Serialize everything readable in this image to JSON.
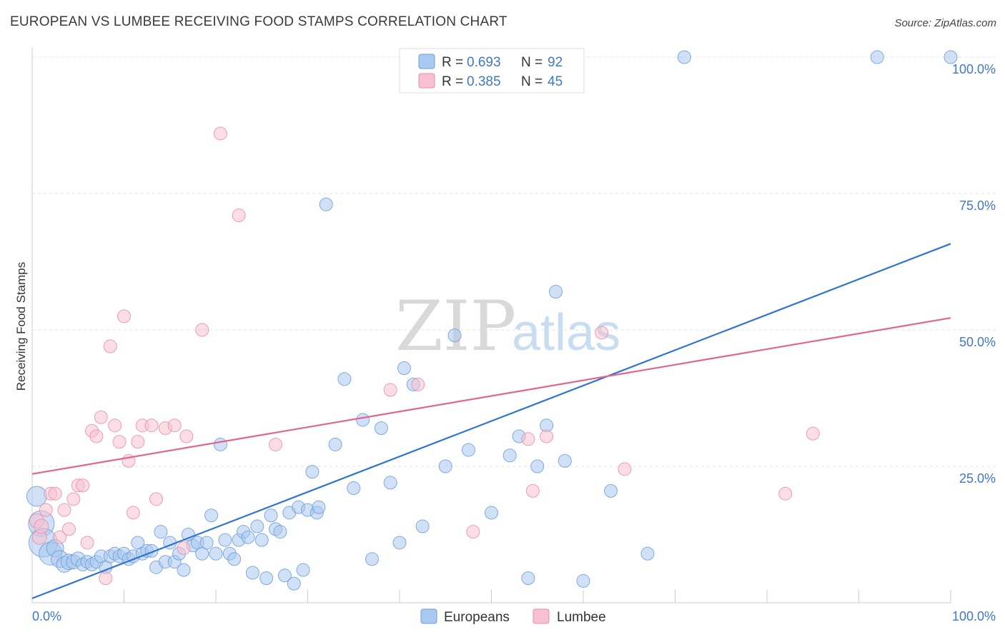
{
  "header": {
    "title": "EUROPEAN VS LUMBEE RECEIVING FOOD STAMPS CORRELATION CHART",
    "source": "Source: ZipAtlas.com"
  },
  "watermark": {
    "zip": "ZIP",
    "atlas": "atlas"
  },
  "legend_top": [
    {
      "r_label": "R = ",
      "r_value": "0.693",
      "n_label": "N = ",
      "n_value": "92",
      "color": "#a9c9f0",
      "stroke": "#6f9ed6"
    },
    {
      "r_label": "R = ",
      "r_value": "0.385",
      "n_label": "N = ",
      "n_value": "45",
      "color": "#f7c1d2",
      "stroke": "#e58fab"
    }
  ],
  "legend_bottom": [
    {
      "label": "Europeans",
      "color": "#a9c9f0",
      "stroke": "#6f9ed6"
    },
    {
      "label": "Lumbee",
      "color": "#f7c1d2",
      "stroke": "#e58fab"
    }
  ],
  "chart_data": {
    "type": "scatter",
    "title": "EUROPEAN VS LUMBEE RECEIVING FOOD STAMPS CORRELATION CHART",
    "xlabel": "",
    "ylabel": "Receiving Food Stamps",
    "xlim": [
      0,
      100
    ],
    "ylim": [
      0,
      100
    ],
    "x_tick_labels": [
      "0.0%",
      "100.0%"
    ],
    "y_tick_labels": [
      "25.0%",
      "50.0%",
      "75.0%",
      "100.0%"
    ],
    "y_ticks": [
      25,
      50,
      75,
      100
    ],
    "grid": true,
    "legend_position": "top-center",
    "series": [
      {
        "name": "Europeans",
        "color": "#a9c9f0",
        "stroke": "#6f9ed6",
        "r": 0.693,
        "n": 92,
        "trend": {
          "x": [
            0,
            100
          ],
          "y": [
            0.8,
            65.8
          ]
        },
        "points": [
          [
            0.5,
            19.5,
            14
          ],
          [
            1,
            14.5,
            18
          ],
          [
            1.2,
            11,
            20
          ],
          [
            2,
            9,
            16
          ],
          [
            2.5,
            10,
            12
          ],
          [
            3,
            8,
            12
          ],
          [
            3.5,
            7,
            11
          ],
          [
            4,
            7.5,
            11
          ],
          [
            4.5,
            7.5,
            10
          ],
          [
            5,
            8,
            10
          ],
          [
            5.5,
            7,
            9
          ],
          [
            6,
            7.5,
            9
          ],
          [
            6.5,
            7,
            9
          ],
          [
            7,
            7.5,
            9
          ],
          [
            7.5,
            8.5,
            9
          ],
          [
            8,
            6.5,
            9
          ],
          [
            8.5,
            8.5,
            9
          ],
          [
            9,
            9,
            9
          ],
          [
            9.5,
            8.5,
            9
          ],
          [
            10,
            9,
            9
          ],
          [
            10.5,
            8,
            9
          ],
          [
            11,
            8.5,
            9
          ],
          [
            11.5,
            11,
            9
          ],
          [
            12,
            9,
            9
          ],
          [
            12.5,
            9.5,
            9
          ],
          [
            13,
            9.5,
            9
          ],
          [
            13.5,
            6.5,
            9
          ],
          [
            14,
            13,
            9
          ],
          [
            14.5,
            7.5,
            9
          ],
          [
            15,
            11,
            9
          ],
          [
            15.5,
            7.5,
            9
          ],
          [
            16,
            9,
            9
          ],
          [
            16.5,
            6,
            9
          ],
          [
            17,
            12.5,
            9
          ],
          [
            17.5,
            10.5,
            9
          ],
          [
            18,
            11,
            9
          ],
          [
            18.5,
            9,
            9
          ],
          [
            19,
            11,
            9
          ],
          [
            19.5,
            16,
            9
          ],
          [
            20,
            9,
            9
          ],
          [
            20.5,
            29,
            9
          ],
          [
            21,
            11.5,
            9
          ],
          [
            21.5,
            9,
            9
          ],
          [
            22,
            8,
            9
          ],
          [
            22.5,
            11.5,
            9
          ],
          [
            23,
            13,
            9
          ],
          [
            23.5,
            12,
            9
          ],
          [
            24,
            5.5,
            9
          ],
          [
            24.5,
            14,
            9
          ],
          [
            25,
            11.5,
            9
          ],
          [
            25.5,
            4.5,
            9
          ],
          [
            26,
            16,
            9
          ],
          [
            26.5,
            13.5,
            9
          ],
          [
            27,
            13,
            9
          ],
          [
            27.5,
            5,
            9
          ],
          [
            28,
            16.5,
            9
          ],
          [
            28.5,
            3.5,
            9
          ],
          [
            29,
            17.5,
            9
          ],
          [
            29.5,
            6,
            9
          ],
          [
            30,
            17,
            9
          ],
          [
            30.5,
            24,
            9
          ],
          [
            31,
            16.5,
            9
          ],
          [
            31.2,
            17.5,
            9
          ],
          [
            32,
            73,
            9
          ],
          [
            33,
            29,
            9
          ],
          [
            34,
            41,
            9
          ],
          [
            35,
            21,
            9
          ],
          [
            36,
            33.5,
            9
          ],
          [
            37,
            8,
            9
          ],
          [
            38,
            32,
            9
          ],
          [
            39,
            22,
            9
          ],
          [
            40,
            11,
            9
          ],
          [
            40.5,
            43,
            9
          ],
          [
            41.5,
            40,
            9
          ],
          [
            42.5,
            14,
            9
          ],
          [
            45,
            25,
            9
          ],
          [
            46,
            49,
            9
          ],
          [
            47.5,
            28,
            9
          ],
          [
            50,
            16.5,
            9
          ],
          [
            52,
            27,
            9
          ],
          [
            53,
            30.5,
            9
          ],
          [
            54,
            4.5,
            9
          ],
          [
            55,
            25,
            9
          ],
          [
            56,
            32.5,
            9
          ],
          [
            57,
            57,
            9
          ],
          [
            58,
            26,
            9
          ],
          [
            60,
            4,
            9
          ],
          [
            63,
            20.5,
            9
          ],
          [
            67,
            9,
            9
          ],
          [
            71,
            100,
            9
          ],
          [
            92,
            100,
            9
          ],
          [
            100,
            100,
            9
          ]
        ]
      },
      {
        "name": "Lumbee",
        "color": "#f7c1d2",
        "stroke": "#e58fab",
        "r": 0.385,
        "n": 45,
        "trend": {
          "x": [
            0,
            100
          ],
          "y": [
            23.6,
            52.2
          ]
        },
        "points": [
          [
            0.5,
            15,
            10
          ],
          [
            0.8,
            12,
            10
          ],
          [
            1,
            14,
            10
          ],
          [
            1.5,
            17,
            9
          ],
          [
            2,
            20,
            9
          ],
          [
            2.5,
            20,
            9
          ],
          [
            3,
            12,
            9
          ],
          [
            3.5,
            17,
            9
          ],
          [
            4,
            13.5,
            9
          ],
          [
            4.5,
            19,
            9
          ],
          [
            5,
            21.5,
            9
          ],
          [
            5.5,
            21.5,
            9
          ],
          [
            6,
            11,
            9
          ],
          [
            6.5,
            31.5,
            9
          ],
          [
            7,
            30.5,
            9
          ],
          [
            7.5,
            34,
            9
          ],
          [
            8,
            4.5,
            9
          ],
          [
            8.5,
            47,
            9
          ],
          [
            9,
            32.5,
            9
          ],
          [
            9.5,
            29.5,
            9
          ],
          [
            10,
            52.5,
            9
          ],
          [
            10.5,
            26,
            9
          ],
          [
            11,
            16.5,
            9
          ],
          [
            11.5,
            29.5,
            9
          ],
          [
            12,
            32.5,
            9
          ],
          [
            13,
            32.5,
            9
          ],
          [
            13.5,
            19,
            9
          ],
          [
            14.5,
            32,
            9
          ],
          [
            15.5,
            32.5,
            9
          ],
          [
            16.5,
            10,
            9
          ],
          [
            16.8,
            30.5,
            9
          ],
          [
            18.5,
            50,
            9
          ],
          [
            20.5,
            86,
            9
          ],
          [
            22.5,
            71,
            9
          ],
          [
            26.5,
            29,
            9
          ],
          [
            39,
            39,
            9
          ],
          [
            42,
            40,
            9
          ],
          [
            48,
            13,
            9
          ],
          [
            54,
            30,
            9
          ],
          [
            54.5,
            20.5,
            9
          ],
          [
            56,
            30.5,
            9
          ],
          [
            62,
            49.5,
            9
          ],
          [
            64.5,
            24.5,
            9
          ],
          [
            82,
            20,
            9
          ],
          [
            85,
            31,
            9
          ]
        ]
      }
    ]
  }
}
